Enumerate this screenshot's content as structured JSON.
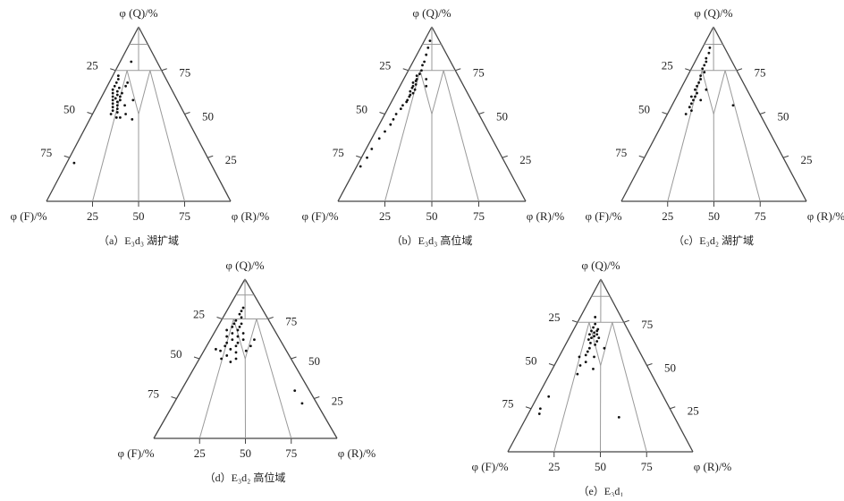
{
  "chart_data": [
    {
      "type": "ternary",
      "title": "（a）E₃d₃ 湖扩域",
      "top_label": "φ (Q)/%",
      "left_label": "φ (F)/%",
      "right_label": "φ (R)/%",
      "ticks": [
        25,
        50,
        75
      ],
      "color": "#111",
      "Q": [
        72,
        70,
        68,
        66,
        65,
        64,
        63,
        62,
        61,
        60,
        60,
        59,
        58,
        58,
        57,
        56,
        55,
        54,
        53,
        52,
        51,
        50,
        48,
        62,
        66,
        55,
        50,
        48,
        80,
        68,
        47,
        58,
        22
      ],
      "F": [
        25,
        26,
        28,
        30,
        28,
        32,
        30,
        33,
        31,
        34,
        30,
        33,
        35,
        31,
        33,
        36,
        34,
        37,
        35,
        38,
        36,
        40,
        38,
        28,
        24,
        30,
        32,
        36,
        14,
        22,
        30,
        24,
        74
      ],
      "R": [
        3,
        4,
        4,
        4,
        7,
        4,
        7,
        5,
        8,
        6,
        10,
        8,
        7,
        11,
        10,
        8,
        11,
        9,
        12,
        10,
        13,
        10,
        14,
        10,
        10,
        15,
        18,
        16,
        6,
        10,
        23,
        18,
        4
      ]
    },
    {
      "type": "ternary",
      "title": "（b）E₃d₃ 高位域",
      "top_label": "φ (Q)/%",
      "left_label": "φ (F)/%",
      "right_label": "φ (R)/%",
      "ticks": [
        25,
        50,
        75
      ],
      "color": "#111",
      "Q": [
        92,
        88,
        84,
        80,
        78,
        75,
        73,
        72,
        70,
        69,
        68,
        67,
        66,
        65,
        64,
        63,
        62,
        61,
        60,
        58,
        57,
        55,
        53,
        50,
        47,
        44,
        40,
        36,
        30,
        25,
        20,
        70,
        66
      ],
      "F": [
        5,
        8,
        11,
        14,
        16,
        18,
        20,
        22,
        23,
        24,
        26,
        25,
        27,
        28,
        27,
        30,
        29,
        31,
        32,
        34,
        35,
        38,
        40,
        44,
        47,
        50,
        55,
        60,
        67,
        72,
        78,
        18,
        20
      ],
      "R": [
        3,
        4,
        5,
        6,
        6,
        7,
        7,
        6,
        7,
        7,
        6,
        8,
        7,
        7,
        9,
        7,
        9,
        8,
        8,
        8,
        8,
        7,
        7,
        6,
        6,
        6,
        5,
        4,
        3,
        3,
        2,
        12,
        14
      ]
    },
    {
      "type": "ternary",
      "title": "（c）E₃d₂ 湖扩域",
      "top_label": "φ (Q)/%",
      "left_label": "φ (F)/%",
      "right_label": "φ (R)/%",
      "ticks": [
        25,
        50,
        75
      ],
      "color": "#111",
      "Q": [
        88,
        85,
        82,
        80,
        78,
        76,
        74,
        72,
        70,
        68,
        66,
        64,
        62,
        60,
        58,
        56,
        54,
        52,
        50,
        64,
        58,
        55,
        60
      ],
      "F": [
        8,
        10,
        13,
        14,
        16,
        18,
        18,
        21,
        22,
        24,
        26,
        28,
        28,
        32,
        32,
        34,
        36,
        36,
        40,
        22,
        28,
        12,
        30
      ],
      "R": [
        4,
        5,
        5,
        6,
        6,
        6,
        8,
        7,
        8,
        8,
        8,
        8,
        10,
        8,
        10,
        10,
        10,
        12,
        10,
        14,
        14,
        33,
        10
      ]
    },
    {
      "type": "ternary",
      "title": "（d）E₃d₂ 高位域",
      "top_label": "φ (Q)/%",
      "left_label": "φ (F)/%",
      "right_label": "φ (R)/%",
      "ticks": [
        25,
        50,
        75
      ],
      "color": "#111",
      "Q": [
        82,
        80,
        78,
        76,
        74,
        72,
        72,
        70,
        70,
        68,
        68,
        66,
        66,
        64,
        64,
        62,
        62,
        60,
        60,
        58,
        58,
        56,
        55,
        54,
        52,
        50,
        50,
        62,
        58,
        55,
        48,
        30,
        22,
        56
      ],
      "F": [
        10,
        12,
        14,
        14,
        18,
        20,
        16,
        22,
        18,
        20,
        26,
        24,
        18,
        28,
        22,
        26,
        20,
        30,
        24,
        32,
        26,
        30,
        36,
        28,
        34,
        38,
        30,
        14,
        18,
        22,
        34,
        8,
        8,
        38
      ],
      "R": [
        8,
        8,
        8,
        10,
        8,
        8,
        12,
        8,
        12,
        12,
        6,
        10,
        16,
        8,
        14,
        12,
        18,
        10,
        16,
        10,
        16,
        14,
        9,
        18,
        14,
        12,
        20,
        24,
        24,
        23,
        18,
        62,
        70,
        6
      ]
    },
    {
      "type": "ternary",
      "title": "（e）E₃d₁",
      "top_label": "φ (Q)/%",
      "left_label": "φ (F)/%",
      "right_label": "φ (R)/%",
      "ticks": [
        25,
        50,
        75
      ],
      "color": "#111",
      "Q": [
        78,
        74,
        72,
        71,
        70,
        70,
        69,
        68,
        68,
        67,
        66,
        66,
        65,
        64,
        63,
        62,
        60,
        58,
        56,
        55,
        52,
        50,
        48,
        45,
        60,
        32,
        25,
        22,
        20,
        55
      ],
      "F": [
        14,
        16,
        18,
        16,
        20,
        17,
        19,
        18,
        22,
        20,
        22,
        18,
        24,
        20,
        24,
        22,
        26,
        28,
        30,
        26,
        32,
        36,
        30,
        40,
        18,
        62,
        70,
        72,
        30,
        34
      ],
      "R": [
        8,
        10,
        10,
        13,
        10,
        13,
        12,
        14,
        10,
        13,
        12,
        16,
        11,
        16,
        13,
        16,
        14,
        14,
        14,
        19,
        16,
        14,
        22,
        15,
        22,
        6,
        5,
        6,
        50,
        11
      ]
    }
  ]
}
